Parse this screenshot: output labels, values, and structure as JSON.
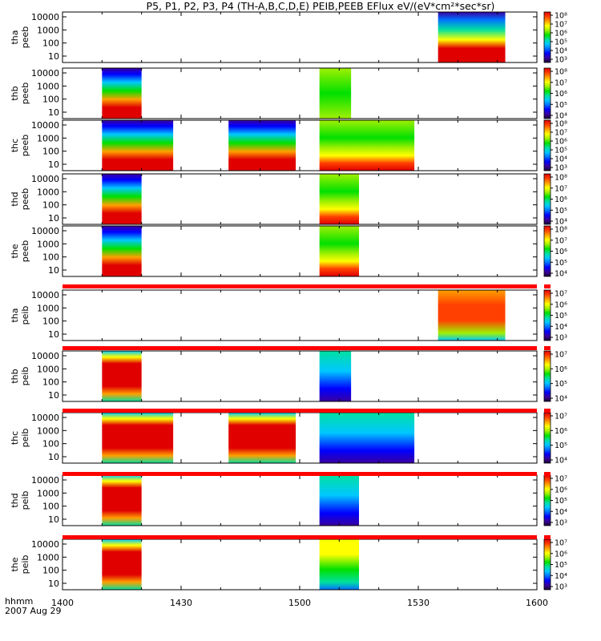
{
  "title": "P5, P1, P2, P3, P4 (TH-A,B,C,D,E) PEIB,PEEB EFlux eV/(eV*cm²*sec*sr)",
  "footer": {
    "hhmm": "hhmm",
    "date": "2007 Aug 29"
  },
  "colors": {
    "colormap": [
      "#1a0033",
      "#3a00a0",
      "#0000ff",
      "#0070ff",
      "#00c8ff",
      "#00e0a0",
      "#00e000",
      "#a0f000",
      "#ffff00",
      "#ffa000",
      "#ff4000",
      "#e00000"
    ],
    "separator": "#ff0000",
    "frame": "#000000"
  },
  "chart_data": {
    "type": "heatmap",
    "xlim": [
      "14:00",
      "16:00"
    ],
    "x_ticks": [
      "1400",
      "1430",
      "1500",
      "1530",
      "1600"
    ],
    "y_scale": "log",
    "panels": [
      {
        "id": "tha-peeb",
        "label1": "tha",
        "label2": "peeb",
        "yticks": [
          "10000",
          "1000",
          "100",
          "10"
        ],
        "cbar_ticks": [
          "10⁸",
          "10⁷",
          "10⁶",
          "10⁵",
          "10⁴",
          "10³"
        ],
        "segments": [
          {
            "start": "15:35",
            "end": "15:52",
            "profile": "ehot"
          }
        ]
      },
      {
        "id": "thb-peeb",
        "label1": "thb",
        "label2": "peeb",
        "yticks": [
          "10000",
          "1000",
          "100",
          "10"
        ],
        "cbar_ticks": [
          "10⁸",
          "10⁷",
          "10⁶",
          "10⁵",
          "10⁴"
        ],
        "segments": [
          {
            "start": "14:10",
            "end": "14:20",
            "profile": "e"
          },
          {
            "start": "15:05",
            "end": "15:13",
            "profile": "flat"
          }
        ]
      },
      {
        "id": "thc-peeb",
        "label1": "thc",
        "label2": "peeb",
        "yticks": [
          "10000",
          "1000",
          "100",
          "10"
        ],
        "cbar_ticks": [
          "10⁸",
          "10⁷",
          "10⁶",
          "10⁵",
          "10⁴",
          "10³"
        ],
        "segments": [
          {
            "start": "14:10",
            "end": "14:28",
            "profile": "e"
          },
          {
            "start": "14:42",
            "end": "14:59",
            "profile": "e"
          },
          {
            "start": "15:05",
            "end": "15:29",
            "profile": "esoft"
          }
        ]
      },
      {
        "id": "thd-peeb",
        "label1": "thd",
        "label2": "peeb",
        "yticks": [
          "10000",
          "1000",
          "100",
          "10"
        ],
        "cbar_ticks": [
          "10⁸",
          "10⁷",
          "10⁶",
          "10⁵",
          "10⁴"
        ],
        "segments": [
          {
            "start": "14:10",
            "end": "14:20",
            "profile": "e"
          },
          {
            "start": "15:05",
            "end": "15:15",
            "profile": "esoft"
          }
        ]
      },
      {
        "id": "the-peeb",
        "label1": "the",
        "label2": "peeb",
        "yticks": [
          "10000",
          "1000",
          "100",
          "10"
        ],
        "cbar_ticks": [
          "10⁸",
          "10⁷",
          "10⁶",
          "10⁵",
          "10⁴"
        ],
        "segments": [
          {
            "start": "14:10",
            "end": "14:20",
            "profile": "e"
          },
          {
            "start": "15:05",
            "end": "15:15",
            "profile": "esoft"
          }
        ]
      },
      {
        "id": "tha-peib",
        "label1": "tha",
        "label2": "peib",
        "yticks": [
          "10000",
          "1000",
          "100",
          "10"
        ],
        "cbar_ticks": [
          "10⁷",
          "10⁶",
          "10⁵",
          "10⁴",
          "10³"
        ],
        "segments": [
          {
            "start": "15:35",
            "end": "15:52",
            "profile": "ihot"
          }
        ]
      },
      {
        "id": "thb-peib",
        "label1": "thb",
        "label2": "peib",
        "yticks": [
          "10000",
          "1000",
          "100",
          "10"
        ],
        "cbar_ticks": [
          "10⁷",
          "10⁶",
          "10⁵",
          "10⁴"
        ],
        "segments": [
          {
            "start": "14:10",
            "end": "14:20",
            "profile": "i"
          },
          {
            "start": "15:05",
            "end": "15:13",
            "profile": "icold"
          }
        ]
      },
      {
        "id": "thc-peib",
        "label1": "thc",
        "label2": "peib",
        "yticks": [
          "10000",
          "1000",
          "100",
          "10"
        ],
        "cbar_ticks": [
          "10⁷",
          "10⁶",
          "10⁵",
          "10⁴"
        ],
        "segments": [
          {
            "start": "14:10",
            "end": "14:28",
            "profile": "i"
          },
          {
            "start": "14:42",
            "end": "14:59",
            "profile": "i"
          },
          {
            "start": "15:05",
            "end": "15:29",
            "profile": "icold"
          }
        ]
      },
      {
        "id": "thd-peib",
        "label1": "thd",
        "label2": "peib",
        "yticks": [
          "10000",
          "1000",
          "100",
          "10"
        ],
        "cbar_ticks": [
          "10⁷",
          "10⁶",
          "10⁵",
          "10⁴",
          "10³"
        ],
        "segments": [
          {
            "start": "14:10",
            "end": "14:20",
            "profile": "i"
          },
          {
            "start": "15:05",
            "end": "15:15",
            "profile": "icold"
          }
        ]
      },
      {
        "id": "the-peib",
        "label1": "the",
        "label2": "peib",
        "yticks": [
          "10000",
          "1000",
          "100",
          "10"
        ],
        "cbar_ticks": [
          "10⁷",
          "10⁶",
          "10⁵",
          "10⁴",
          "10³"
        ],
        "segments": [
          {
            "start": "14:10",
            "end": "14:20",
            "profile": "i"
          },
          {
            "start": "15:05",
            "end": "15:15",
            "profile": "iwarm"
          }
        ]
      }
    ]
  }
}
